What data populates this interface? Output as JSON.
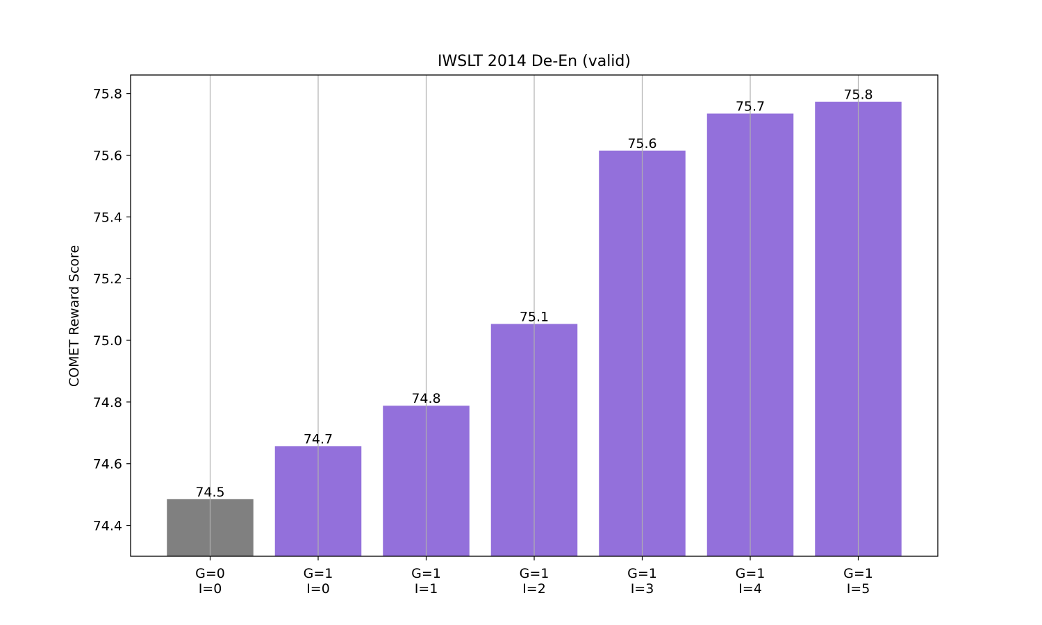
{
  "chart_data": {
    "type": "bar",
    "title": "IWSLT 2014 De-En (valid)",
    "xlabel": "",
    "ylabel": "COMET Reward Score",
    "ylim": [
      74.3,
      75.86
    ],
    "yticks": [
      74.4,
      74.6,
      74.8,
      75.0,
      75.2,
      75.4,
      75.6,
      75.8
    ],
    "ytick_labels": [
      "74.4",
      "74.6",
      "74.8",
      "75.0",
      "75.2",
      "75.4",
      "75.6",
      "75.8"
    ],
    "grid": "vertical",
    "categories": [
      [
        "G=0",
        "I=0"
      ],
      [
        "G=1",
        "I=0"
      ],
      [
        "G=1",
        "I=1"
      ],
      [
        "G=1",
        "I=2"
      ],
      [
        "G=1",
        "I=3"
      ],
      [
        "G=1",
        "I=4"
      ],
      [
        "G=1",
        "I=5"
      ]
    ],
    "values": [
      74.485,
      74.657,
      74.788,
      75.053,
      75.615,
      75.735,
      75.773
    ],
    "value_labels": [
      "74.5",
      "74.7",
      "74.8",
      "75.1",
      "75.6",
      "75.7",
      "75.8"
    ],
    "colors": [
      "#808080",
      "#9370DB",
      "#9370DB",
      "#9370DB",
      "#9370DB",
      "#9370DB",
      "#9370DB"
    ]
  }
}
